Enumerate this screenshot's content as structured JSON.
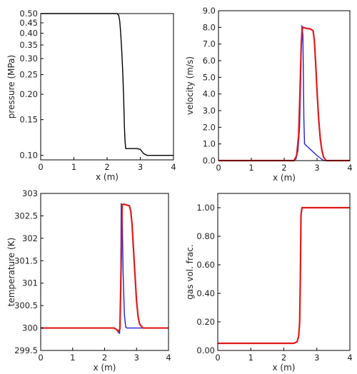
{
  "chart_data": [
    {
      "type": "line",
      "title": "",
      "xlabel": "x (m)",
      "ylabel": "pressure (MPa)",
      "xlim": [
        0,
        4
      ],
      "ylim": [
        0.095,
        0.5
      ],
      "yscale": "log",
      "grid": false,
      "legend": "none",
      "xticks": [
        0,
        1,
        2,
        3,
        4
      ],
      "xtick_labels": [
        "0",
        "1",
        "2",
        "3",
        "4"
      ],
      "yticks": [
        0.1,
        0.15,
        0.2,
        0.25,
        0.3,
        0.35,
        0.4,
        0.45,
        0.5
      ],
      "ytick_labels": [
        "0.10",
        "0.15",
        "0.20",
        "0.25",
        "0.30",
        "0.35",
        "0.40",
        "0.45",
        "0.50"
      ],
      "series": [
        {
          "color": "#000000",
          "x": [
            0,
            2.3,
            2.35,
            2.38,
            2.41,
            2.44,
            2.47,
            2.5,
            2.52,
            2.54,
            2.56,
            2.6,
            2.9,
            3.0,
            3.1,
            3.2,
            4.0
          ],
          "y": [
            0.5,
            0.5,
            0.49,
            0.46,
            0.4,
            0.33,
            0.26,
            0.19,
            0.14,
            0.118,
            0.108,
            0.108,
            0.108,
            0.107,
            0.102,
            0.1,
            0.1
          ]
        }
      ]
    },
    {
      "type": "line",
      "title": "",
      "xlabel": "x (m)",
      "ylabel": "velocity (m/s)",
      "xlim": [
        0,
        4
      ],
      "ylim": [
        0,
        9
      ],
      "grid": false,
      "legend": "none",
      "xticks": [
        0,
        1,
        2,
        3,
        4
      ],
      "xtick_labels": [
        "0",
        "1",
        "2",
        "3",
        "4"
      ],
      "yticks": [
        0,
        1,
        2,
        3,
        4,
        5,
        6,
        7,
        8,
        9
      ],
      "ytick_labels": [
        "0.0",
        "1.0",
        "2.0",
        "3.0",
        "4.0",
        "5.0",
        "6.0",
        "7.0",
        "8.0",
        "9.0"
      ],
      "series": [
        {
          "color": "#1f1fd6",
          "x": [
            0,
            2.3,
            2.36,
            2.42,
            2.47,
            2.5,
            2.52,
            2.54,
            2.57,
            2.6,
            2.62,
            3.0,
            3.2,
            3.25,
            4.0
          ],
          "y": [
            0,
            0,
            0.1,
            0.6,
            2.0,
            4.5,
            7.0,
            8.1,
            7.5,
            2.5,
            1.0,
            0.3,
            0.0,
            0.0,
            0.0
          ]
        },
        {
          "color": "#e01a1a",
          "x": [
            0,
            2.3,
            2.38,
            2.44,
            2.48,
            2.52,
            2.55,
            2.58,
            2.65,
            2.8,
            2.88,
            2.92,
            2.96,
            3.0,
            3.05,
            3.1,
            3.15,
            3.2,
            3.28,
            4.0
          ],
          "y": [
            0,
            0,
            0.3,
            1.5,
            4.0,
            7.0,
            7.9,
            8.0,
            7.95,
            7.9,
            7.8,
            7.2,
            5.8,
            4.2,
            2.5,
            1.3,
            0.6,
            0.2,
            0.0,
            0.0
          ]
        }
      ]
    },
    {
      "type": "line",
      "title": "",
      "xlabel": "x (m)",
      "ylabel": "temperature (K)",
      "xlim": [
        0,
        4
      ],
      "ylim": [
        299.5,
        303
      ],
      "grid": false,
      "legend": "none",
      "xticks": [
        0,
        1,
        2,
        3,
        4
      ],
      "xtick_labels": [
        "0",
        "1",
        "2",
        "3",
        "4"
      ],
      "yticks": [
        299.5,
        300,
        300.5,
        301,
        301.5,
        302,
        302.5,
        303
      ],
      "ytick_labels": [
        "299.5",
        "300",
        "300.5",
        "301",
        "301.5",
        "302",
        "302.5",
        "303"
      ],
      "series": [
        {
          "color": "#1f1fd6",
          "x": [
            0,
            2.3,
            2.38,
            2.43,
            2.47,
            2.5,
            2.52,
            2.55,
            2.58,
            2.62,
            2.66,
            2.7,
            4.0
          ],
          "y": [
            300,
            300,
            299.97,
            299.9,
            299.88,
            300.6,
            302.77,
            302.6,
            301.2,
            300.3,
            300.02,
            300,
            300
          ]
        },
        {
          "color": "#e01a1a",
          "x": [
            0,
            2.3,
            2.38,
            2.44,
            2.48,
            2.52,
            2.55,
            2.6,
            2.7,
            2.78,
            2.82,
            2.86,
            2.9,
            2.95,
            3.0,
            3.05,
            3.1,
            3.2,
            4.0
          ],
          "y": [
            300,
            300,
            299.96,
            299.93,
            299.98,
            301.5,
            302.75,
            302.76,
            302.74,
            302.72,
            302.6,
            302.3,
            301.8,
            301.2,
            300.6,
            300.25,
            300.08,
            300,
            300
          ]
        }
      ]
    },
    {
      "type": "line",
      "title": "",
      "xlabel": "x (m)",
      "ylabel": "gas vol. frac.",
      "xlim": [
        0,
        4
      ],
      "ylim": [
        0,
        1.1
      ],
      "grid": false,
      "legend": "none",
      "xticks": [
        0,
        1,
        2,
        3,
        4
      ],
      "xtick_labels": [
        "0",
        "1",
        "2",
        "3",
        "4"
      ],
      "yticks": [
        0,
        0.2,
        0.4,
        0.6,
        0.8,
        1.0
      ],
      "ytick_labels": [
        "0.00",
        "0.20",
        "0.40",
        "0.60",
        "0.80",
        "1.00"
      ],
      "series": [
        {
          "color": "#1f1fd6",
          "x": [
            0,
            2.3,
            2.4,
            2.45,
            2.48,
            2.5,
            2.52,
            2.55,
            2.6,
            4.0
          ],
          "y": [
            0.05,
            0.05,
            0.06,
            0.1,
            0.2,
            0.5,
            0.95,
            1.0,
            1.0,
            1.0
          ]
        },
        {
          "color": "#e01a1a",
          "x": [
            0,
            2.3,
            2.4,
            2.45,
            2.48,
            2.5,
            2.52,
            2.55,
            2.6,
            4.0
          ],
          "y": [
            0.05,
            0.05,
            0.06,
            0.1,
            0.2,
            0.5,
            0.95,
            1.0,
            1.0,
            1.0
          ]
        }
      ]
    }
  ]
}
